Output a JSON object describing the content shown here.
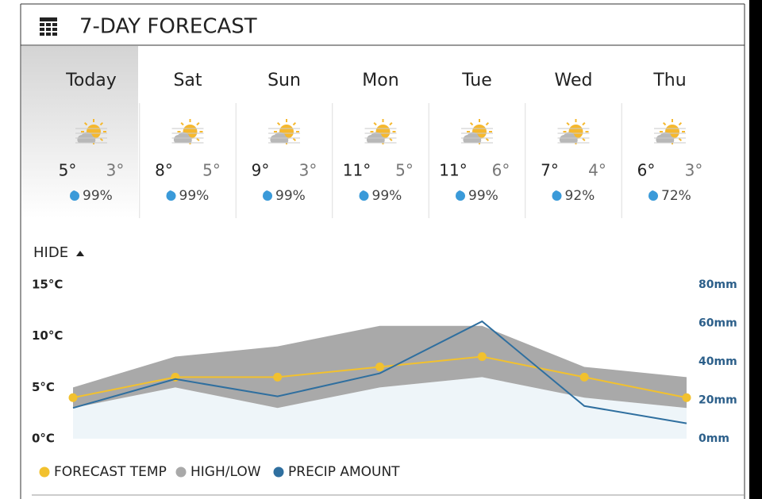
{
  "header": {
    "title": "7-DAY FORECAST"
  },
  "days": [
    {
      "name": "Today",
      "high": "5°",
      "low": "3°",
      "precip": "99%"
    },
    {
      "name": "Sat",
      "high": "8°",
      "low": "5°",
      "precip": "99%"
    },
    {
      "name": "Sun",
      "high": "9°",
      "low": "3°",
      "precip": "99%"
    },
    {
      "name": "Mon",
      "high": "11°",
      "low": "5°",
      "precip": "99%"
    },
    {
      "name": "Tue",
      "high": "11°",
      "low": "6°",
      "precip": "99%"
    },
    {
      "name": "Wed",
      "high": "7°",
      "low": "4°",
      "precip": "92%"
    },
    {
      "name": "Thu",
      "high": "6°",
      "low": "3°",
      "precip": "72%"
    }
  ],
  "toggle": "HIDE",
  "chart_data": {
    "type": "line",
    "categories": [
      null,
      null,
      null,
      null,
      null,
      null,
      null
    ],
    "series": [
      {
        "name": "FORECAST TEMP",
        "color": "#f2c12e",
        "values": [
          4,
          6,
          6,
          7,
          8,
          6,
          4
        ]
      },
      {
        "name": "HIGH/LOW",
        "color": "#a9a9a9",
        "values": [
          5,
          8,
          9,
          11,
          11,
          7,
          6
        ],
        "low": [
          3,
          5,
          3,
          5,
          6,
          4,
          3
        ]
      },
      {
        "name": "PRECIP AMOUNT",
        "color": "#2f6f9f",
        "axis": "y2",
        "values": [
          16,
          31,
          22,
          34,
          61,
          17,
          8
        ]
      }
    ],
    "area_color": "#eef5f9",
    "ylim": [
      0,
      15
    ],
    "yticks": [
      {
        "value": 0,
        "label": "0°C"
      },
      {
        "value": 5,
        "label": "5°C"
      },
      {
        "value": 10,
        "label": "10°C"
      },
      {
        "value": 15,
        "label": "15°C"
      }
    ],
    "y2lim": [
      0,
      80
    ],
    "y2ticks": [
      {
        "value": 0,
        "label": "0mm"
      },
      {
        "value": 20,
        "label": "20mm"
      },
      {
        "value": 40,
        "label": "40mm"
      },
      {
        "value": 60,
        "label": "60mm"
      },
      {
        "value": 80,
        "label": "80mm"
      }
    ]
  }
}
